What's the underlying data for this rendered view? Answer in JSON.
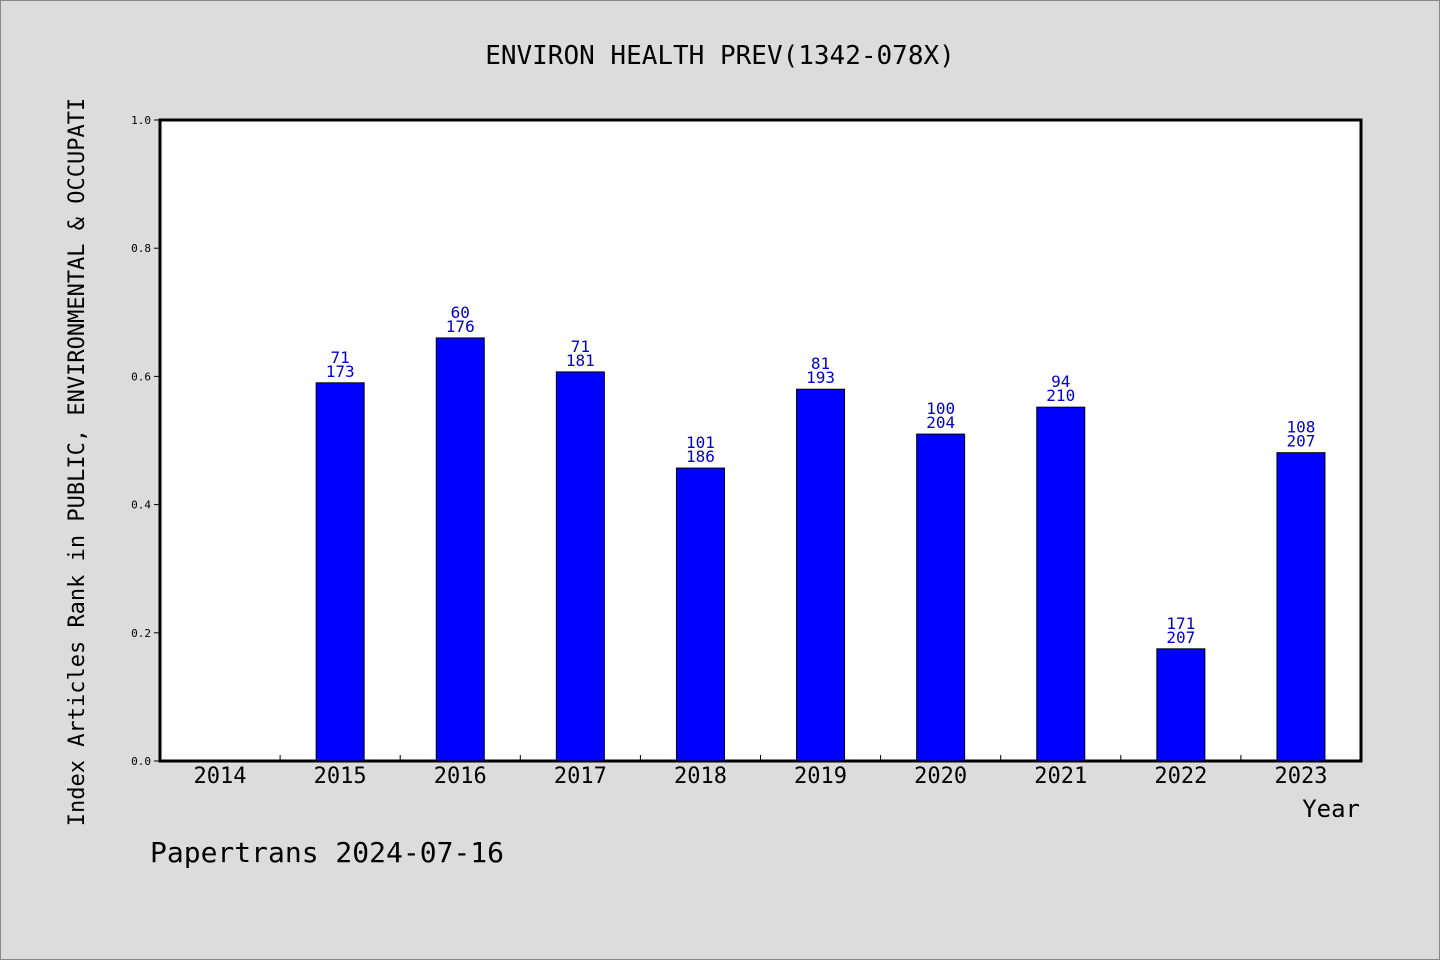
{
  "chart_data": {
    "type": "bar",
    "title": "ENVIRON HEALTH PREV(1342-078X)",
    "xlabel": "Year",
    "ylabel": "Index Articles Rank in PUBLIC, ENVIRONMENTAL & OCCUPATI",
    "categories": [
      "2014",
      "2015",
      "2016",
      "2017",
      "2018",
      "2019",
      "2020",
      "2021",
      "2022",
      "2023"
    ],
    "values": [
      null,
      0.59,
      0.66,
      0.607,
      0.457,
      0.58,
      0.51,
      0.552,
      0.175,
      0.481
    ],
    "rank_labels": [
      "",
      "71",
      "60",
      "71",
      "101",
      "81",
      "100",
      "94",
      "171",
      "108"
    ],
    "total_labels": [
      "",
      "173",
      "176",
      "181",
      "186",
      "193",
      "204",
      "210",
      "207",
      "207"
    ],
    "ylim": [
      0,
      1.0
    ],
    "yticks": [
      "0.0",
      "0.2",
      "0.4",
      "0.6",
      "0.8",
      "1.0"
    ],
    "bar_color": "#0000ff",
    "label_color": "#0000cc",
    "grid": false,
    "legend": "none"
  },
  "footer": {
    "text": "Papertrans 2024-07-16"
  }
}
